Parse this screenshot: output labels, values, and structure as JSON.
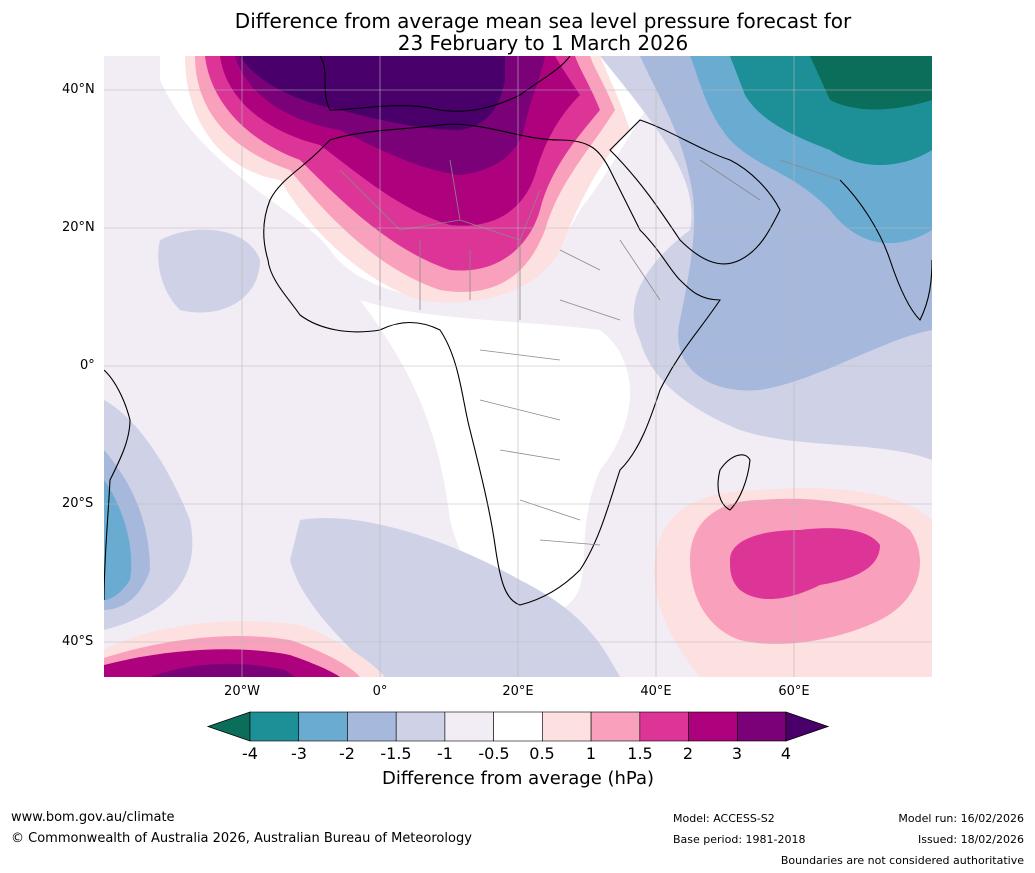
{
  "title": {
    "line1": "Difference from average mean sea level pressure forecast for",
    "line2": "23 February to 1 March 2026"
  },
  "map": {
    "lat_ticks": [
      "40°N",
      "20°N",
      "0°",
      "20°S",
      "40°S"
    ],
    "lon_ticks": [
      "20°W",
      "0°",
      "20°E",
      "40°E",
      "60°E"
    ],
    "extent": {
      "lon": [
        -40,
        80
      ],
      "lat": [
        -45,
        45
      ]
    }
  },
  "colorbar": {
    "ticks": [
      "-4",
      "-3",
      "-2",
      "-1.5",
      "-1",
      "-0.5",
      "0.5",
      "1",
      "1.5",
      "2",
      "3",
      "4"
    ],
    "colors": [
      "#0b6e5a",
      "#1c9096",
      "#6aabd1",
      "#a6b9dc",
      "#cfd2e6",
      "#f2ecf5",
      "#ffffff",
      "#fde0e0",
      "#f9a1bc",
      "#dd3497",
      "#ae017e",
      "#7a0177",
      "#49006a"
    ],
    "label": "Difference from average (hPa)"
  },
  "footer": {
    "website": "www.bom.gov.au/climate",
    "copyright": "© Commonwealth of Australia 2026, Australian Bureau of Meteorology",
    "model": "Model: ACCESS-S2",
    "base_period": "Base period: 1981-2018",
    "model_run": "Model run: 16/02/2026",
    "issued": "Issued: 18/02/2026",
    "disclaimer": "Boundaries are not considered authoritative"
  }
}
